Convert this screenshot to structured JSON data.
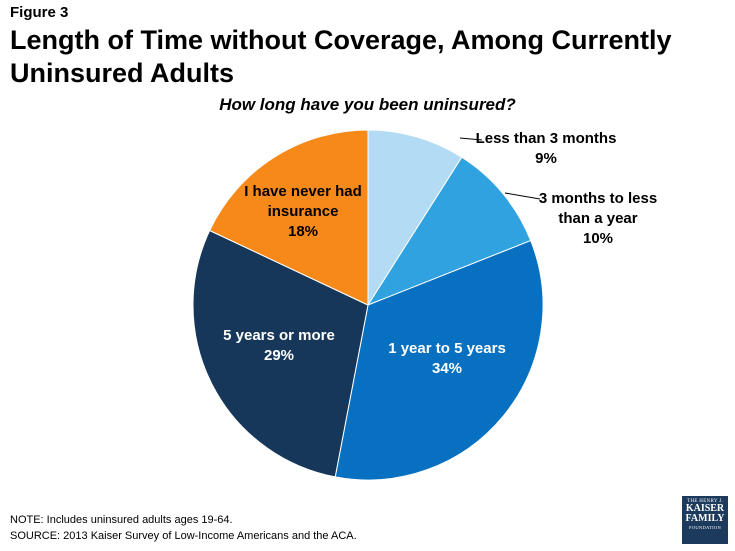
{
  "figure_label": "Figure 3",
  "chart_data": {
    "type": "pie",
    "title": "Length of Time without Coverage, Among Currently Uninsured Adults",
    "subtitle": "How long have you been uninsured?",
    "slices": [
      {
        "label": "Less than 3 months",
        "value": 9,
        "display": "9%",
        "color": "#b3dbf3"
      },
      {
        "label": "3 months to less than a year",
        "value": 10,
        "display": "10%",
        "color": "#30a2e0"
      },
      {
        "label": "1 year to 5 years",
        "value": 34,
        "display": "34%",
        "color": "#0870c0"
      },
      {
        "label": "5 years or more",
        "value": 29,
        "display": "29%",
        "color": "#17375a"
      },
      {
        "label": "I have never had insurance",
        "value": 18,
        "display": "18%",
        "color": "#f7891b"
      }
    ]
  },
  "footer": {
    "note": "NOTE: Includes uninsured adults ages 19-64.",
    "source": "SOURCE: 2013 Kaiser Survey of Low-Income Americans and the ACA."
  },
  "logo": {
    "line1": "THE HENRY J.",
    "line2": "KAISER",
    "line3": "FAMILY",
    "line4": "FOUNDATION"
  }
}
